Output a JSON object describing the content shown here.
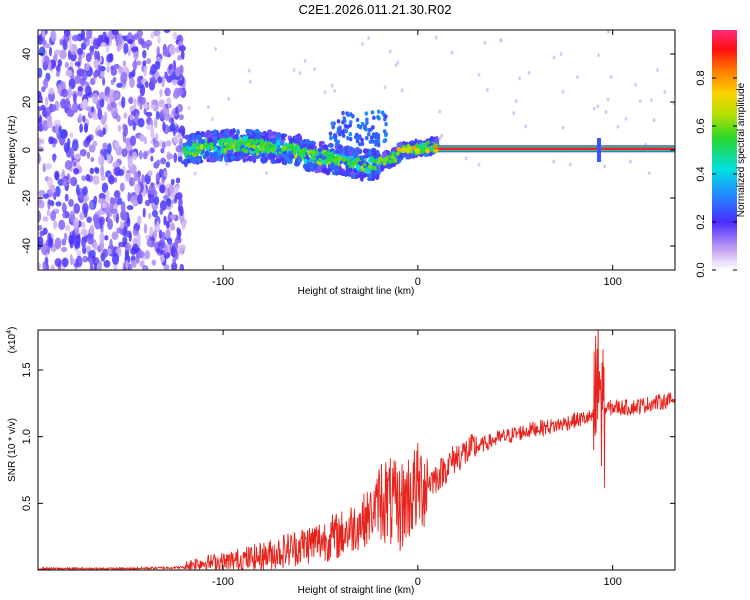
{
  "title": "C2E1.2026.011.21.30.R02",
  "colors": {
    "snr_line": "#e8231c",
    "spectro_low": "#7b2fe0",
    "axis": "#000000"
  },
  "chart_data": [
    {
      "type": "heatmap",
      "title": "C2E1.2026.011.21.30.R02",
      "xlabel": "Height of straight line (km)",
      "ylabel": "Frequency (Hz)",
      "xlim": [
        -195,
        132
      ],
      "ylim": [
        -50,
        50
      ],
      "x_ticks": [
        -100,
        0,
        100
      ],
      "x_tick_labels": [
        "-100",
        "0",
        "100"
      ],
      "y_ticks": [
        -40,
        -20,
        0,
        20,
        40
      ],
      "y_tick_labels": [
        "-40",
        "-20",
        "0",
        "20",
        "40"
      ],
      "colorbar": {
        "label": "Normalized spectral amplitude",
        "range": [
          0,
          1
        ],
        "ticks": [
          0.0,
          0.2,
          0.4,
          0.6,
          0.8
        ],
        "tick_labels": [
          "0.0",
          "0.2",
          "0.4",
          "0.6",
          "0.8"
        ]
      },
      "features": {
        "noise_region_x": [
          -195,
          -120
        ],
        "scattered_signal_x": [
          -120,
          10
        ],
        "stable_line_x": [
          10,
          132
        ],
        "stable_line_frequency": 0.5,
        "spike_x": 93
      }
    },
    {
      "type": "line",
      "xlabel": "Height of straight line (km)",
      "ylabel": "SNR (10 * v/v)",
      "y_scale_label": "(x10",
      "y_scale_exponent": "4",
      "xlim": [
        -195,
        132
      ],
      "ylim": [
        0,
        1.8
      ],
      "x_ticks": [
        -100,
        0,
        100
      ],
      "x_tick_labels": [
        "-100",
        "0",
        "100"
      ],
      "y_ticks": [
        0.5,
        1.0,
        1.5
      ],
      "y_tick_labels": [
        "0.5",
        "1.0",
        "1.5"
      ],
      "series": [
        {
          "name": "SNR",
          "x": [
            -195,
            -150,
            -120,
            -115,
            -100,
            -80,
            -60,
            -40,
            -25,
            -18,
            -10,
            -5,
            0,
            10,
            20,
            30,
            40,
            50,
            60,
            70,
            80,
            90,
            93,
            95,
            100,
            110,
            120,
            132
          ],
          "y": [
            0.01,
            0.01,
            0.02,
            0.05,
            0.06,
            0.1,
            0.18,
            0.26,
            0.4,
            0.55,
            0.45,
            0.55,
            0.62,
            0.7,
            0.85,
            0.92,
            0.98,
            1.02,
            1.06,
            1.08,
            1.12,
            1.15,
            1.4,
            1.2,
            1.22,
            1.22,
            1.25,
            1.28
          ]
        }
      ]
    }
  ]
}
